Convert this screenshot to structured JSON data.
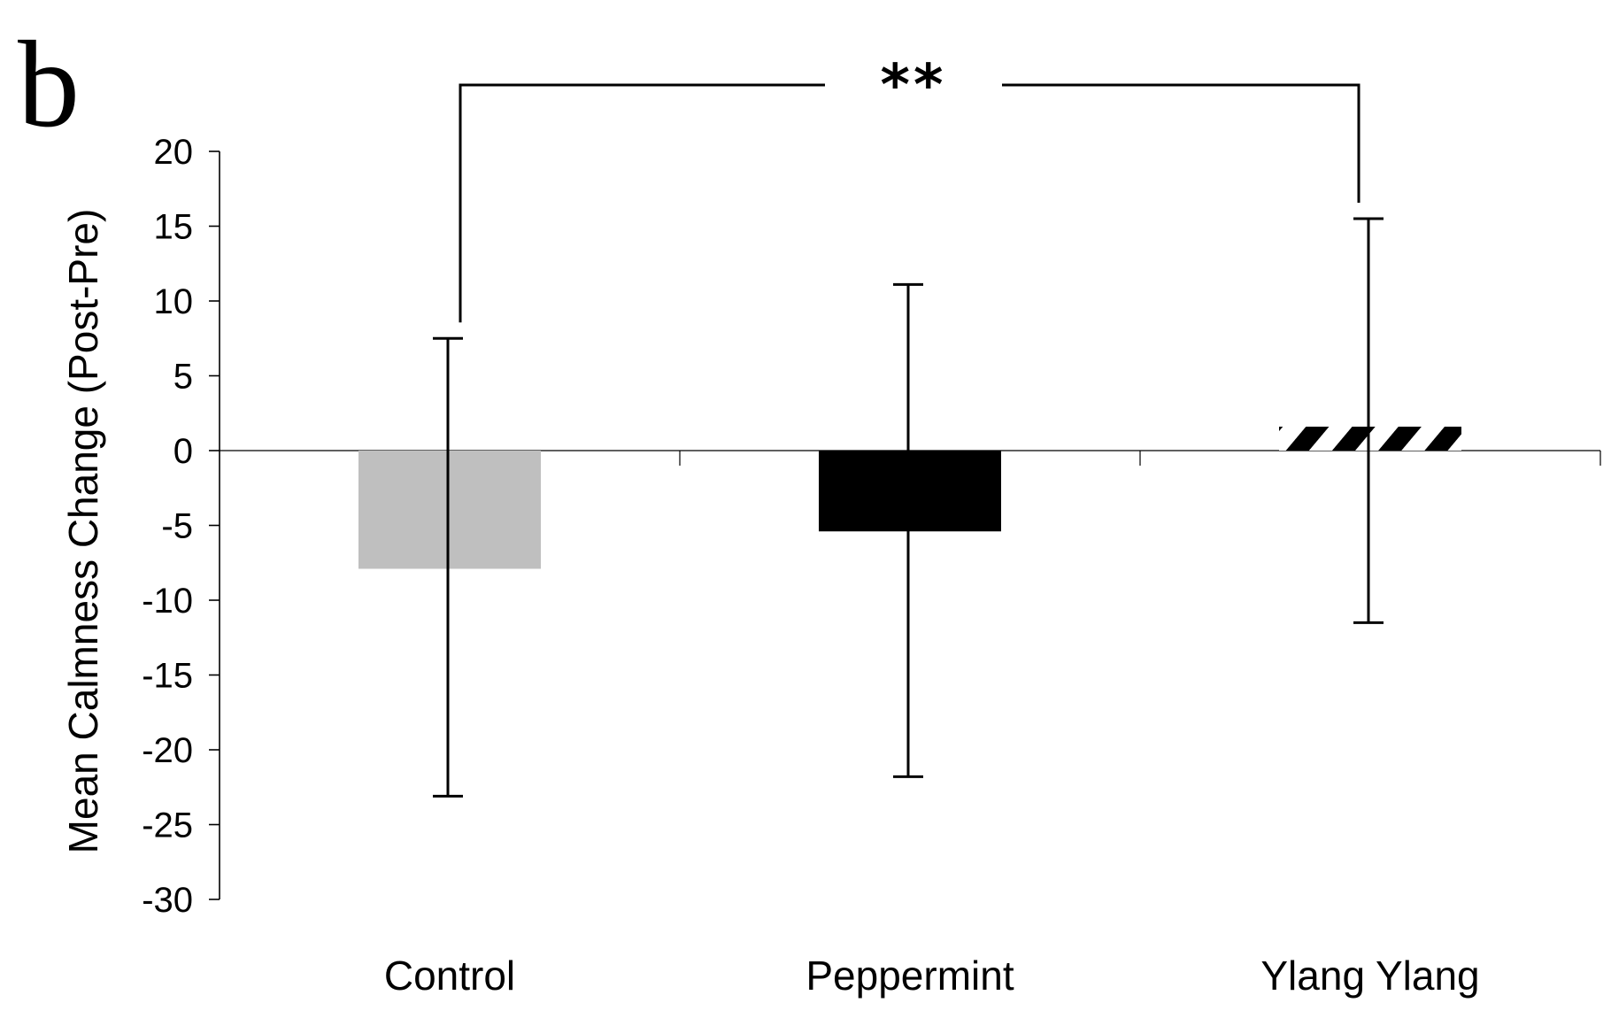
{
  "panel_label": "b",
  "colors": {
    "control": "#bfbfbf",
    "peppermint": "#000000",
    "ylang_ylang_pattern": "black/white diagonal hatch",
    "axes": "#000000"
  },
  "chart_data": {
    "type": "bar",
    "title": "",
    "xlabel": "",
    "ylabel": "Mean Calmness Change (Post-Pre)",
    "ylim": [
      -30,
      20
    ],
    "yticks": [
      20,
      15,
      10,
      5,
      0,
      -5,
      -10,
      -15,
      -20,
      -25,
      -30
    ],
    "ytick_labels": [
      "20",
      "15",
      "10",
      "5",
      "0",
      "-5",
      "-10",
      "-15",
      "-20",
      "-25",
      "-30"
    ],
    "categories": [
      "Control",
      "Peppermint",
      "Ylang Ylang"
    ],
    "values": [
      -7.9,
      -5.4,
      1.6
    ],
    "error_bars": {
      "upper": [
        7.5,
        11.1,
        15.5
      ],
      "lower": [
        -23.1,
        -21.8,
        -11.5
      ]
    },
    "grid": false,
    "legend": "none",
    "significance": {
      "label": "**",
      "between": [
        "Control",
        "Ylang Ylang"
      ]
    }
  }
}
